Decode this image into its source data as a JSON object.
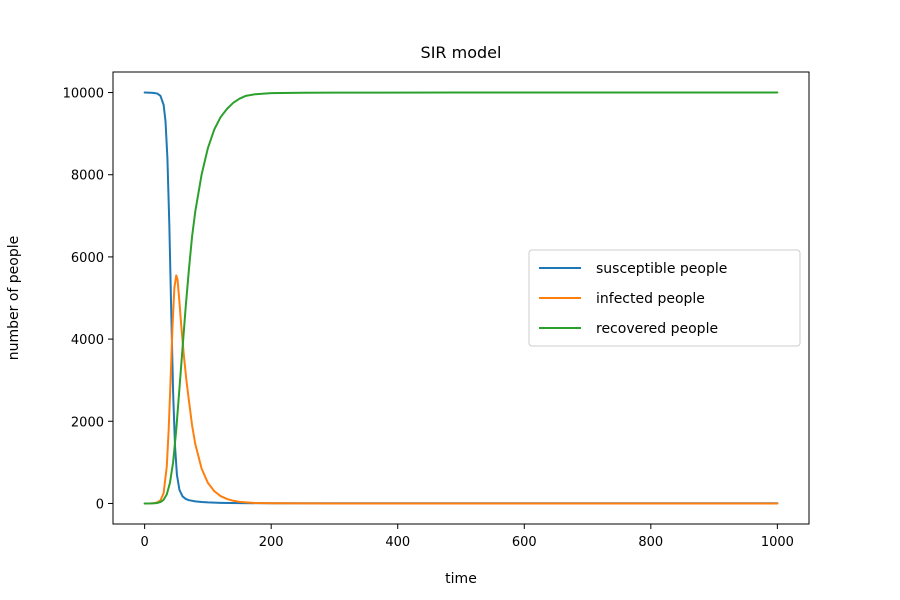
{
  "chart_data": {
    "type": "line",
    "title": "SIR model",
    "xlabel": "time",
    "ylabel": "number of people",
    "xlim": [
      -50,
      1050
    ],
    "ylim": [
      -500,
      10500
    ],
    "xticks": [
      0,
      200,
      400,
      600,
      800,
      1000
    ],
    "yticks": [
      0,
      2000,
      4000,
      6000,
      8000,
      10000
    ],
    "grid": false,
    "legend_position": "center-right",
    "series": [
      {
        "name": "susceptible people",
        "color": "#1f77b4",
        "x": [
          0,
          10,
          15,
          20,
          25,
          30,
          33,
          36,
          39,
          42,
          45,
          48,
          51,
          55,
          60,
          65,
          70,
          80,
          90,
          100,
          120,
          150,
          200,
          300,
          500,
          1000
        ],
        "y": [
          10000,
          9995,
          9990,
          9975,
          9920,
          9700,
          9300,
          8400,
          6800,
          4700,
          2700,
          1400,
          700,
          330,
          170,
          110,
          80,
          50,
          35,
          25,
          15,
          8,
          5,
          5,
          5,
          5
        ]
      },
      {
        "name": "infected people",
        "color": "#ff7f0e",
        "x": [
          0,
          10,
          15,
          20,
          25,
          30,
          35,
          38,
          41,
          44,
          47,
          50,
          52,
          55,
          58,
          62,
          66,
          70,
          75,
          80,
          90,
          100,
          110,
          120,
          130,
          140,
          150,
          160,
          175,
          200,
          250,
          300,
          500,
          1000
        ],
        "y": [
          0,
          3,
          8,
          25,
          75,
          250,
          900,
          1800,
          3000,
          4300,
          5250,
          5550,
          5450,
          4900,
          4300,
          3600,
          3000,
          2500,
          1900,
          1450,
          850,
          500,
          300,
          180,
          110,
          65,
          40,
          25,
          12,
          5,
          2,
          0,
          0,
          0
        ]
      },
      {
        "name": "recovered people",
        "color": "#2ca02c",
        "x": [
          0,
          10,
          15,
          20,
          25,
          30,
          35,
          40,
          45,
          50,
          55,
          60,
          65,
          70,
          75,
          80,
          90,
          100,
          110,
          120,
          130,
          140,
          150,
          160,
          175,
          200,
          250,
          300,
          500,
          1000
        ],
        "y": [
          0,
          2,
          5,
          12,
          35,
          90,
          220,
          500,
          1000,
          1800,
          2800,
          3800,
          4800,
          5700,
          6500,
          7100,
          8000,
          8650,
          9100,
          9400,
          9600,
          9750,
          9850,
          9920,
          9960,
          9985,
          9995,
          9998,
          10000,
          10000
        ]
      }
    ]
  }
}
